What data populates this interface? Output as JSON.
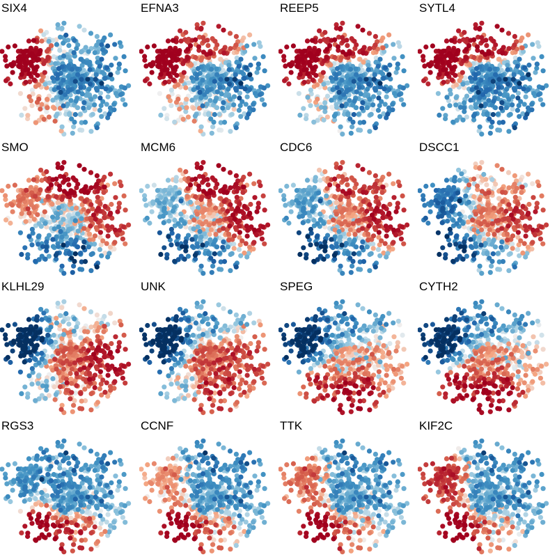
{
  "chart_data": {
    "type": "scatter",
    "layout": "4x4 small-multiples grid of t-SNE style embeddings; same cell positions in every panel, colored by per-gene expression",
    "color_scale": {
      "name": "RdBu (reversed)",
      "low": "#2166ac",
      "mid": "#f7f7f7",
      "high": "#b2182b"
    },
    "axes_visible": false,
    "grid": false,
    "legend": "none",
    "regions": [
      "left",
      "top",
      "right",
      "lower_left",
      "bottom",
      "center"
    ],
    "panels": [
      {
        "gene": "SIX4",
        "region_expression": {
          "left": 1.0,
          "top": -0.35,
          "right": -0.5,
          "lower_left": 0.15,
          "bottom": -0.3,
          "center": -0.45
        }
      },
      {
        "gene": "EFNA3",
        "region_expression": {
          "left": 1.0,
          "top": 0.6,
          "right": -0.6,
          "lower_left": 0.0,
          "bottom": -0.25,
          "center": -0.35
        }
      },
      {
        "gene": "REEP5",
        "region_expression": {
          "left": 0.95,
          "top": 0.75,
          "right": -0.55,
          "lower_left": -0.1,
          "bottom": -0.45,
          "center": -0.4
        }
      },
      {
        "gene": "SYTL4",
        "region_expression": {
          "left": 0.95,
          "top": 0.8,
          "right": -0.55,
          "lower_left": -0.35,
          "bottom": -0.55,
          "center": -0.5
        }
      },
      {
        "gene": "SMO",
        "region_expression": {
          "left": 0.3,
          "top": 0.95,
          "right": 0.55,
          "lower_left": -0.6,
          "bottom": -0.8,
          "center": -0.1
        }
      },
      {
        "gene": "MCM6",
        "region_expression": {
          "left": -0.2,
          "top": 0.85,
          "right": 0.75,
          "lower_left": -0.8,
          "bottom": -0.6,
          "center": 0.1
        }
      },
      {
        "gene": "CDC6",
        "region_expression": {
          "left": -0.3,
          "top": 0.55,
          "right": 0.7,
          "lower_left": -0.9,
          "bottom": -0.6,
          "center": 0.2
        }
      },
      {
        "gene": "DSCC1",
        "region_expression": {
          "left": -0.6,
          "top": 0.15,
          "right": 0.55,
          "lower_left": -0.85,
          "bottom": -0.4,
          "center": 0.25
        }
      },
      {
        "gene": "KLHL29",
        "region_expression": {
          "left": -1.0,
          "top": -0.1,
          "right": 0.7,
          "lower_left": -0.2,
          "bottom": 0.3,
          "center": 0.35
        }
      },
      {
        "gene": "UNK",
        "region_expression": {
          "left": -1.0,
          "top": -0.35,
          "right": 0.45,
          "lower_left": -0.15,
          "bottom": 0.5,
          "center": 0.4
        }
      },
      {
        "gene": "SPEG",
        "region_expression": {
          "left": -0.95,
          "top": -0.45,
          "right": 0.1,
          "lower_left": 0.55,
          "bottom": 0.8,
          "center": 0.1
        }
      },
      {
        "gene": "CYTH2",
        "region_expression": {
          "left": -0.95,
          "top": -0.5,
          "right": 0.05,
          "lower_left": 0.75,
          "bottom": 0.85,
          "center": 0.2
        }
      },
      {
        "gene": "RGS3",
        "region_expression": {
          "left": -0.4,
          "top": -0.5,
          "right": -0.35,
          "lower_left": 0.95,
          "bottom": 0.5,
          "center": -0.35
        }
      },
      {
        "gene": "CCNF",
        "region_expression": {
          "left": 0.2,
          "top": -0.55,
          "right": -0.4,
          "lower_left": 1.0,
          "bottom": 0.25,
          "center": -0.3
        }
      },
      {
        "gene": "TTK",
        "region_expression": {
          "left": 0.35,
          "top": -0.5,
          "right": -0.35,
          "lower_left": 1.0,
          "bottom": 0.2,
          "center": -0.3
        }
      },
      {
        "gene": "KIF2C",
        "region_expression": {
          "left": 0.6,
          "top": -0.5,
          "right": -0.4,
          "lower_left": 1.0,
          "bottom": 0.15,
          "center": -0.3
        }
      }
    ]
  }
}
